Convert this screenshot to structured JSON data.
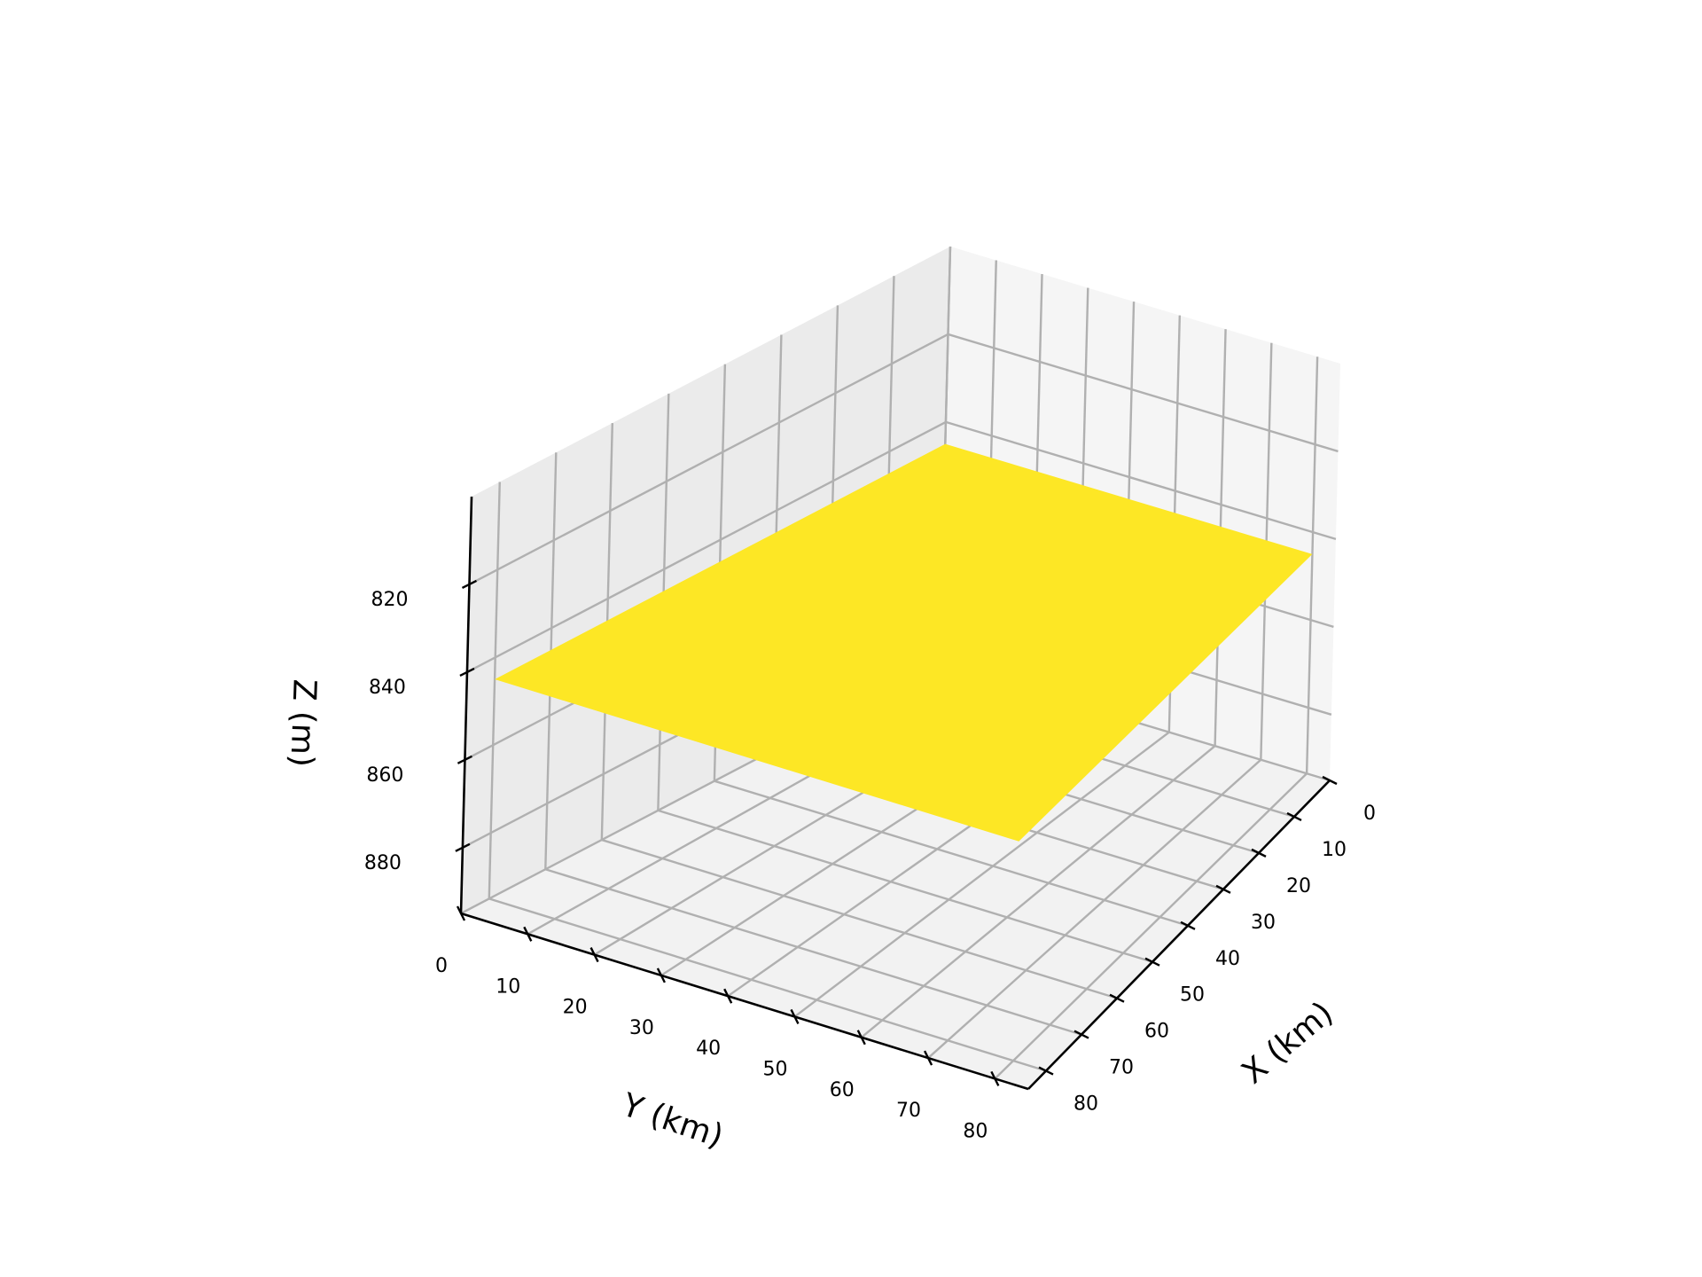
{
  "chart_data": {
    "type": "surface",
    "title": "",
    "xlabel": "X (km)",
    "ylabel": "Y (km)",
    "zlabel": "Z (m)",
    "x_ticks": [
      "0",
      "10",
      "20",
      "30",
      "40",
      "50",
      "60",
      "70",
      "80"
    ],
    "y_ticks": [
      "0",
      "10",
      "20",
      "30",
      "40",
      "50",
      "60",
      "70",
      "80"
    ],
    "z_ticks": [
      "820",
      "840",
      "860",
      "880"
    ],
    "xlim": [
      0,
      85
    ],
    "ylim": [
      0,
      85
    ],
    "zlim": [
      800,
      895
    ],
    "z_axis_inverted": true,
    "grid": true,
    "surface": {
      "x_range": [
        0,
        80
      ],
      "y_range": [
        0,
        80
      ],
      "z_value": 845,
      "color": "#fde725",
      "description": "flat"
    },
    "pane_colors": [
      "#f2f2f2",
      "#ebebeb",
      "#f5f5f5"
    ],
    "grid_color": "#b0b0b0"
  }
}
